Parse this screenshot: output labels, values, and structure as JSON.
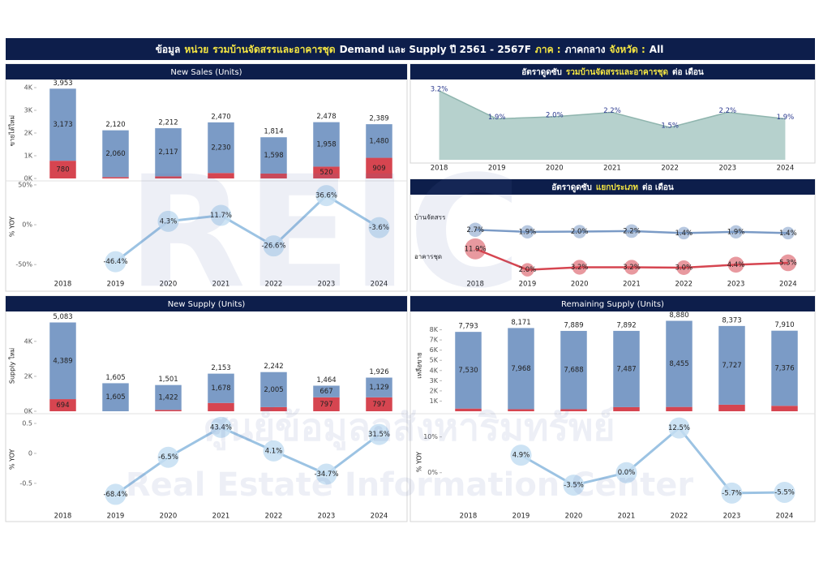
{
  "header": {
    "title_parts": [
      "ข้อมูล",
      "หน่วย",
      "รวมบ้านจัดสรรและอาคารชุด",
      "Demand และ Supply ปี 2561 - 2567F",
      "ภาค :",
      "ภาคกลาง",
      "จังหวัด :",
      "All"
    ],
    "highlight": [
      1,
      2,
      4,
      6
    ]
  },
  "watermark": {
    "logo": "REIC",
    "th": "ศูนย์ข้อมูลอสังหาริมทรัพย์",
    "en": "Real Estate Information Center"
  },
  "chart_data": [
    {
      "type": "bar",
      "stacked": true,
      "title": "New Sales (Units)",
      "ylabel": "ขายได้ใหม่",
      "ylim": [
        0,
        4200
      ],
      "yticks": [
        {
          "value": 0,
          "label": "0K"
        },
        {
          "value": 1000,
          "label": "1K"
        },
        {
          "value": 2000,
          "label": "2K"
        },
        {
          "value": 3000,
          "label": "3K"
        },
        {
          "value": 4000,
          "label": "4K"
        }
      ],
      "series": [
        {
          "color": "#d64550",
          "values": [
            780,
            60,
            95,
            240,
            216,
            520,
            909
          ],
          "value_labels": [
            "780",
            null,
            null,
            null,
            null,
            "520",
            "909"
          ]
        },
        {
          "color": "#7b9bc6",
          "values": [
            3173,
            2060,
            2117,
            2230,
            1598,
            1958,
            1480
          ],
          "value_labels": [
            "3,173",
            "2,060",
            "2,117",
            "2,230",
            "1,598",
            "1,958",
            "1,480"
          ]
        }
      ],
      "totals": [
        3953,
        2120,
        2212,
        2470,
        1814,
        2478,
        2389
      ],
      "total_labels": [
        "3,953",
        "2,120",
        "2,212",
        "2,470",
        "1,814",
        "2,478",
        "2,389"
      ]
    },
    {
      "type": "line",
      "ylabel": "% YOY",
      "categories": [
        "2018",
        "2019",
        "2020",
        "2021",
        "2022",
        "2023",
        "2024"
      ],
      "values": [
        null,
        -46.4,
        4.3,
        11.7,
        -26.6,
        36.6,
        -3.6
      ],
      "value_labels": [
        null,
        "-46.4%",
        "4.3%",
        "11.7%",
        "-26.6%",
        "36.6%",
        "-3.6%"
      ],
      "ylim": [
        -60,
        55
      ],
      "yticks": [
        {
          "value": -50,
          "label": "-50%"
        },
        {
          "value": 0,
          "label": "0%"
        },
        {
          "value": 50,
          "label": "50%"
        }
      ],
      "color": "#9cc3e3"
    },
    {
      "type": "area",
      "title_parts": [
        "อัตราดูดซับ",
        "รวมบ้านจัดสรรและอาคารชุด",
        "ต่อ เดือน"
      ],
      "title_highlight": [
        1
      ],
      "categories": [
        "2018",
        "2019",
        "2020",
        "2021",
        "2022",
        "2023",
        "2024"
      ],
      "values": [
        3.2,
        1.9,
        2.0,
        2.2,
        1.5,
        2.2,
        1.9
      ],
      "value_labels": [
        "3.2%",
        "1.9%",
        "2.0%",
        "2.2%",
        "1.5%",
        "2.2%",
        "1.9%"
      ],
      "ylim": [
        0,
        3.5
      ],
      "color": "#a9c9c4"
    },
    {
      "type": "line",
      "title_parts": [
        "อัตราดูดซับ",
        "แยกประเภท",
        "ต่อ เดือน"
      ],
      "title_highlight": [
        1
      ],
      "categories": [
        "2018",
        "2019",
        "2020",
        "2021",
        "2022",
        "2023",
        "2024"
      ],
      "series": [
        {
          "name": "บ้านจัดสรร",
          "color": "#7b9bc6",
          "values": [
            2.7,
            1.9,
            2.0,
            2.2,
            1.4,
            1.9,
            1.4
          ],
          "value_labels": [
            "2.7%",
            "1.9%",
            "2.0%",
            "2.2%",
            "1.4%",
            "1.9%",
            "1.4%"
          ],
          "ylim": [
            -2,
            14
          ]
        },
        {
          "name": "อาคารชุด",
          "color": "#d64550",
          "values": [
            11.9,
            2.0,
            3.2,
            3.2,
            3.0,
            4.4,
            5.3
          ],
          "value_labels": [
            "11.9%",
            "2.0%",
            "3.2%",
            "3.2%",
            "3.0%",
            "4.4%",
            "5.3%"
          ],
          "ylim": [
            -2,
            14.5
          ]
        }
      ]
    },
    {
      "type": "bar",
      "stacked": true,
      "title": "New Supply (Units)",
      "ylabel": "Supply ใหม่",
      "ylim": [
        0,
        5200
      ],
      "yticks": [
        {
          "value": 0,
          "label": "0K"
        },
        {
          "value": 2000,
          "label": "2K"
        },
        {
          "value": 4000,
          "label": "4K"
        }
      ],
      "series": [
        {
          "color": "#d64550",
          "values": [
            694,
            0,
            79,
            475,
            237,
            797,
            797
          ],
          "value_labels": [
            "694",
            null,
            null,
            null,
            null,
            "797",
            "797"
          ]
        },
        {
          "color": "#7b9bc6",
          "values": [
            4389,
            1605,
            1422,
            1678,
            2005,
            667,
            1129
          ],
          "value_labels": [
            "4,389",
            "1,605",
            "1,422",
            "1,678",
            "2,005",
            "667",
            "1,129"
          ]
        }
      ],
      "totals": [
        5083,
        1605,
        1501,
        2153,
        2242,
        1464,
        1926
      ],
      "total_labels": [
        "5,083",
        "1,605",
        "1,501",
        "2,153",
        "2,242",
        "1,464",
        "1,926"
      ]
    },
    {
      "type": "line",
      "ylabel": "% YOY",
      "categories": [
        "2018",
        "2019",
        "2020",
        "2021",
        "2022",
        "2023",
        "2024"
      ],
      "values": [
        null,
        -0.684,
        -0.065,
        0.434,
        0.041,
        -0.347,
        0.315
      ],
      "value_labels": [
        null,
        "-68.4%",
        "-6.5%",
        "43.4%",
        "4.1%",
        "-34.7%",
        "31.5%"
      ],
      "ylim": [
        -0.8,
        0.6
      ],
      "yticks": [
        -0.5,
        0,
        0.5
      ],
      "color": "#9cc3e3"
    },
    {
      "type": "bar",
      "stacked": true,
      "title": "Remaining Supply (Units)",
      "ylabel": "เหลือขาย",
      "ylim": [
        0,
        9000
      ],
      "yticks": [
        {
          "value": 1000,
          "label": "1K"
        },
        {
          "value": 2000,
          "label": "2K"
        },
        {
          "value": 3000,
          "label": "3K"
        },
        {
          "value": 4000,
          "label": "4K"
        },
        {
          "value": 5000,
          "label": "5K"
        },
        {
          "value": 6000,
          "label": "6K"
        },
        {
          "value": 7000,
          "label": "7K"
        },
        {
          "value": 8000,
          "label": "8K"
        }
      ],
      "series": [
        {
          "color": "#d64550",
          "values": [
            263,
            203,
            201,
            405,
            425,
            646,
            534
          ]
        },
        {
          "color": "#7b9bc6",
          "values": [
            7530,
            7968,
            7688,
            7487,
            8455,
            7727,
            7376
          ],
          "value_labels": [
            "7,530",
            "7,968",
            "7,688",
            "7,487",
            "8,455",
            "7,727",
            "7,376"
          ]
        }
      ],
      "totals": [
        7793,
        8171,
        7889,
        7892,
        8880,
        8373,
        7910
      ],
      "total_labels": [
        "7,793",
        "8,171",
        "7,889",
        "7,892",
        "8,880",
        "8,373",
        "7,910"
      ]
    },
    {
      "type": "line",
      "ylabel": "% YOY",
      "categories": [
        "2018",
        "2019",
        "2020",
        "2021",
        "2022",
        "2023",
        "2024"
      ],
      "values": [
        null,
        4.9,
        -3.5,
        0.0,
        12.5,
        -5.7,
        -5.5
      ],
      "value_labels": [
        null,
        "4.9%",
        "-3.5%",
        "0.0%",
        "12.5%",
        "-5.7%",
        "-5.5%"
      ],
      "ylim": [
        -8,
        14
      ],
      "yticks": [
        {
          "value": 0,
          "label": "0%"
        },
        {
          "value": 10,
          "label": "10%"
        }
      ],
      "color": "#9cc3e3"
    }
  ]
}
